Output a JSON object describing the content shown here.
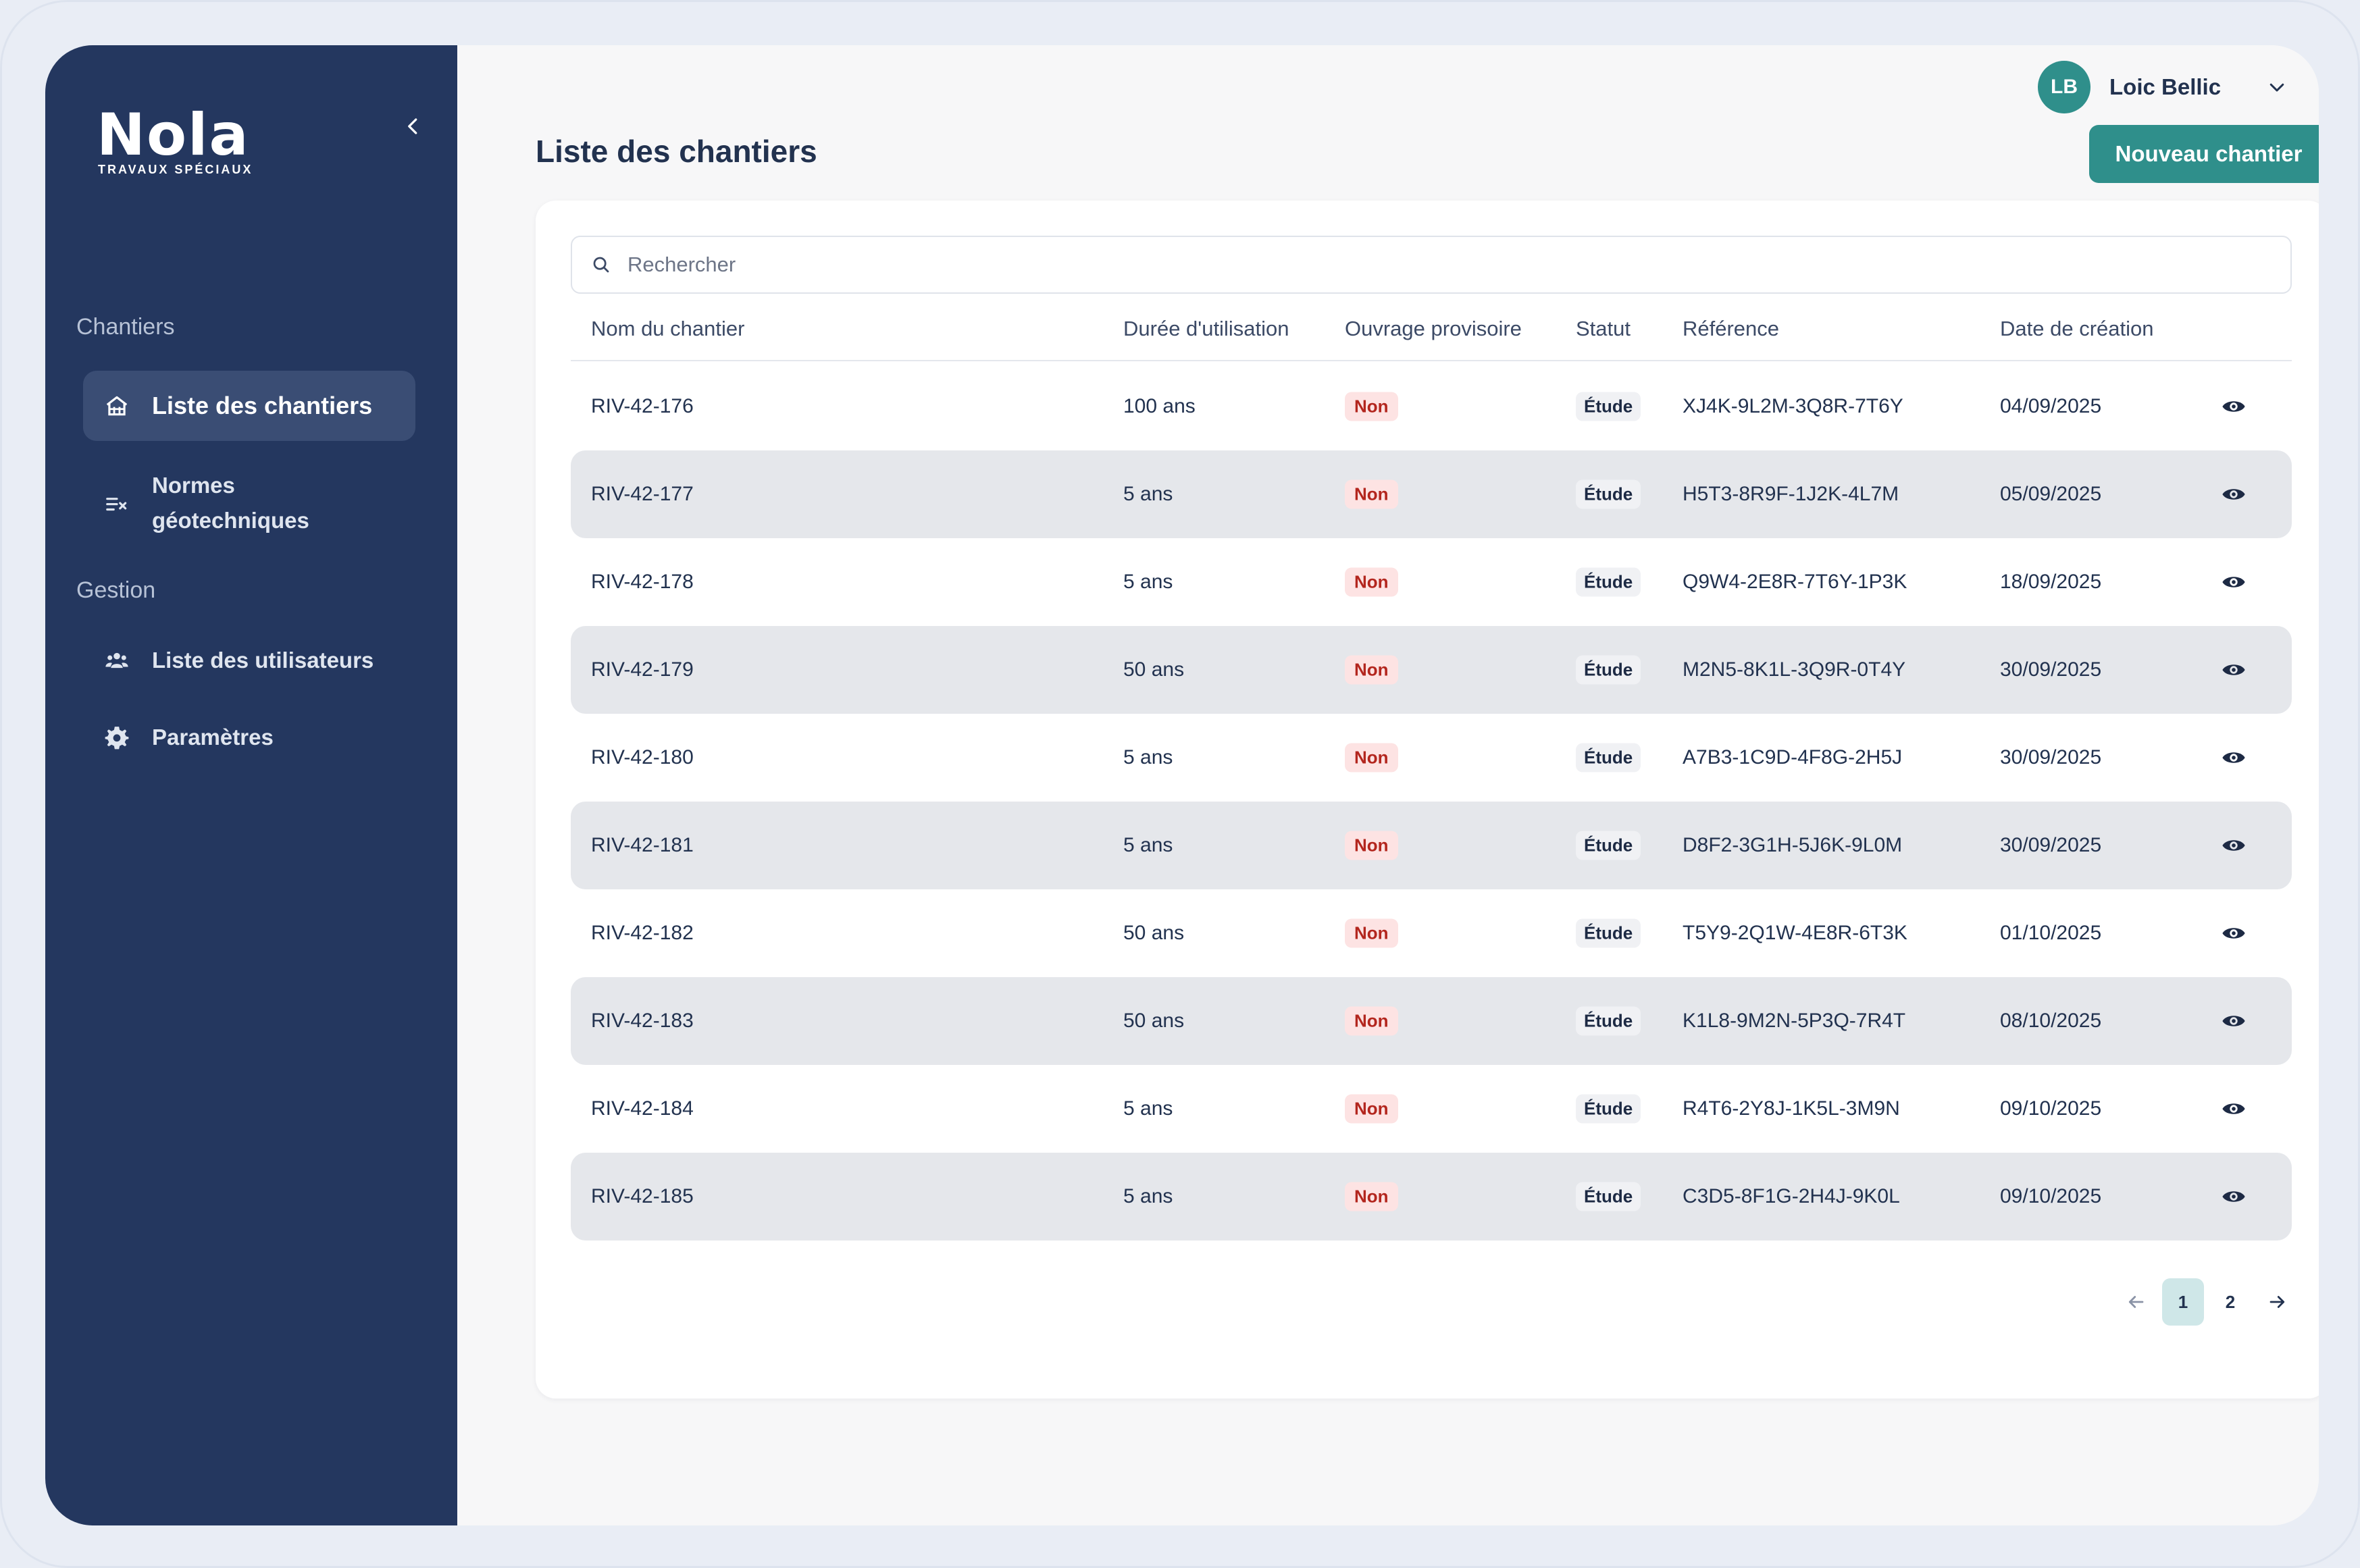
{
  "brand": {
    "name": "Nola",
    "tagline": "TRAVAUX SPÉCIAUX"
  },
  "sidebar": {
    "sections": [
      {
        "title": "Chantiers"
      },
      {
        "title": "Gestion"
      }
    ],
    "items": [
      {
        "label": "Liste des chantiers",
        "icon": "house-grid-icon",
        "active": true
      },
      {
        "label": "Normes géotechniques",
        "icon": "list-check-icon",
        "active": false
      },
      {
        "label": "Liste des utilisateurs",
        "icon": "users-icon",
        "active": false
      },
      {
        "label": "Paramètres",
        "icon": "gear-icon",
        "active": false
      }
    ]
  },
  "header": {
    "title": "Liste des chantiers",
    "user": {
      "initials": "LB",
      "name": "Loic Bellic"
    },
    "new_button": "Nouveau chantier"
  },
  "search": {
    "placeholder": "Rechercher"
  },
  "table": {
    "columns": [
      "Nom du chantier",
      "Durée d'utilisation",
      "Ouvrage provisoire",
      "Statut",
      "Référence",
      "Date de création"
    ],
    "rows": [
      {
        "name": "RIV-42-176",
        "duration": "100 ans",
        "provisional": "Non",
        "status": "Étude",
        "reference": "XJ4K-9L2M-3Q8R-7T6Y",
        "date": "04/09/2025"
      },
      {
        "name": "RIV-42-177",
        "duration": "5 ans",
        "provisional": "Non",
        "status": "Étude",
        "reference": "H5T3-8R9F-1J2K-4L7M",
        "date": "05/09/2025"
      },
      {
        "name": "RIV-42-178",
        "duration": "5 ans",
        "provisional": "Non",
        "status": "Étude",
        "reference": "Q9W4-2E8R-7T6Y-1P3K",
        "date": "18/09/2025"
      },
      {
        "name": "RIV-42-179",
        "duration": "50 ans",
        "provisional": "Non",
        "status": "Étude",
        "reference": "M2N5-8K1L-3Q9R-0T4Y",
        "date": "30/09/2025"
      },
      {
        "name": "RIV-42-180",
        "duration": "5 ans",
        "provisional": "Non",
        "status": "Étude",
        "reference": "A7B3-1C9D-4F8G-2H5J",
        "date": "30/09/2025"
      },
      {
        "name": "RIV-42-181",
        "duration": "5 ans",
        "provisional": "Non",
        "status": "Étude",
        "reference": "D8F2-3G1H-5J6K-9L0M",
        "date": "30/09/2025"
      },
      {
        "name": "RIV-42-182",
        "duration": "50 ans",
        "provisional": "Non",
        "status": "Étude",
        "reference": "T5Y9-2Q1W-4E8R-6T3K",
        "date": "01/10/2025"
      },
      {
        "name": "RIV-42-183",
        "duration": "50 ans",
        "provisional": "Non",
        "status": "Étude",
        "reference": "K1L8-9M2N-5P3Q-7R4T",
        "date": "08/10/2025"
      },
      {
        "name": "RIV-42-184",
        "duration": "5 ans",
        "provisional": "Non",
        "status": "Étude",
        "reference": "R4T6-2Y8J-1K5L-3M9N",
        "date": "09/10/2025"
      },
      {
        "name": "RIV-42-185",
        "duration": "5 ans",
        "provisional": "Non",
        "status": "Étude",
        "reference": "C3D5-8F1G-2H4J-9K0L",
        "date": "09/10/2025"
      }
    ]
  },
  "pagination": {
    "pages": [
      "1",
      "2"
    ],
    "current": "1"
  },
  "colors": {
    "sidebar": "#24375f",
    "accent": "#2f8f8b",
    "badge_non_bg": "#fde3e3",
    "badge_non_text": "#b3261e"
  }
}
